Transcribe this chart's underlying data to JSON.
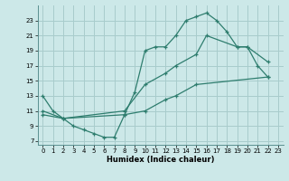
{
  "background_color": "#cce8e8",
  "grid_color": "#a8cccc",
  "line_color": "#2e7d6e",
  "line1_x": [
    0,
    1,
    2,
    3,
    4,
    5,
    6,
    7,
    8,
    9,
    10,
    11,
    12,
    13,
    14,
    15,
    16,
    17,
    18,
    19,
    20,
    21,
    22
  ],
  "line1_y": [
    13.0,
    11.0,
    10.0,
    9.0,
    8.5,
    8.0,
    7.5,
    7.5,
    10.5,
    13.5,
    19.0,
    19.5,
    19.5,
    21.0,
    23.0,
    23.5,
    24.0,
    23.0,
    21.5,
    19.5,
    19.5,
    17.0,
    15.5
  ],
  "line2_x": [
    0,
    2,
    8,
    10,
    12,
    13,
    15,
    16,
    19,
    20,
    22
  ],
  "line2_y": [
    11.0,
    10.0,
    11.0,
    14.5,
    16.0,
    17.0,
    18.5,
    21.0,
    19.5,
    19.5,
    17.5
  ],
  "line3_x": [
    0,
    2,
    8,
    10,
    12,
    13,
    15,
    22
  ],
  "line3_y": [
    10.5,
    10.0,
    10.5,
    11.0,
    12.5,
    13.0,
    14.5,
    15.5
  ],
  "xlabel": "Humidex (Indice chaleur)",
  "xlim": [
    -0.5,
    23.5
  ],
  "ylim": [
    6.5,
    25
  ],
  "yticks": [
    7,
    9,
    11,
    13,
    15,
    17,
    19,
    21,
    23
  ],
  "xticks": [
    0,
    1,
    2,
    3,
    4,
    5,
    6,
    7,
    8,
    9,
    10,
    11,
    12,
    13,
    14,
    15,
    16,
    17,
    18,
    19,
    20,
    21,
    22,
    23
  ]
}
